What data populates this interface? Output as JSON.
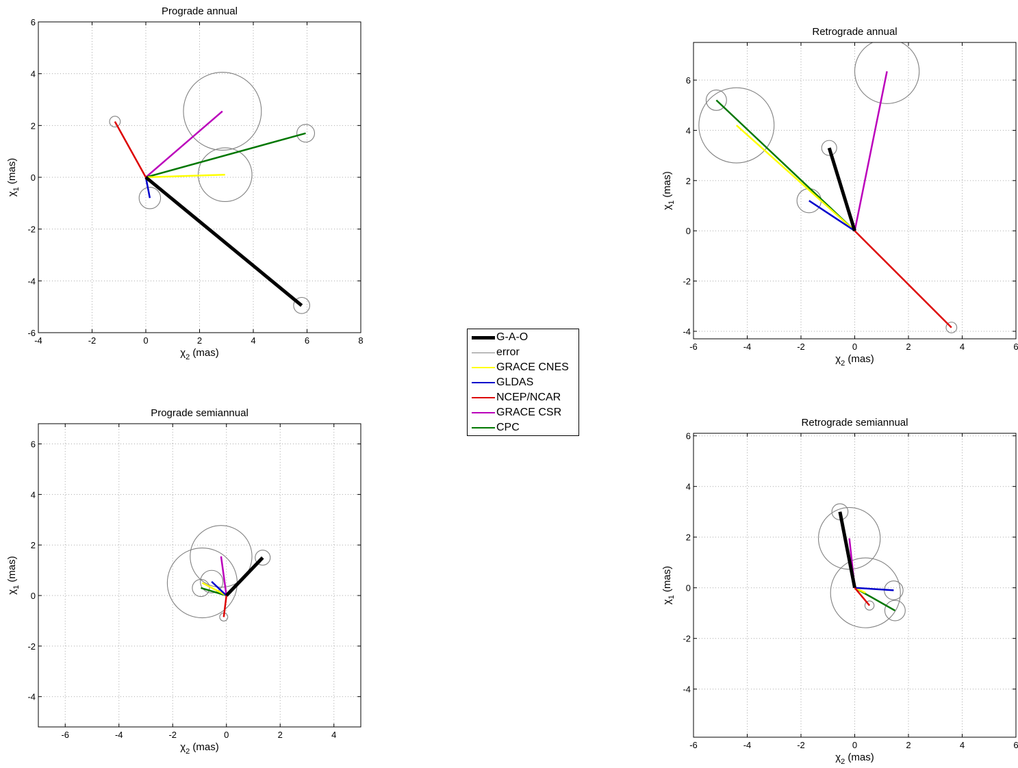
{
  "legend": [
    {
      "name": "G-A-O",
      "color": "#000000",
      "width": 5
    },
    {
      "name": "error",
      "color": "#808080",
      "width": 1
    },
    {
      "name": "GRACE CNES",
      "color": "#ffff00",
      "width": 2.5
    },
    {
      "name": "GLDAS",
      "color": "#0000cc",
      "width": 2.5
    },
    {
      "name": "NCEP/NCAR",
      "color": "#dd0000",
      "width": 2.5
    },
    {
      "name": "GRACE CSR",
      "color": "#bb00bb",
      "width": 2.5
    },
    {
      "name": "CPC",
      "color": "#007700",
      "width": 2.5
    }
  ],
  "chart_data": [
    {
      "type": "scatter",
      "title": "Prograde annual",
      "xlabel": "χ2 (mas)",
      "ylabel": "χ1 (mas)",
      "xlim": [
        -4,
        8
      ],
      "ylim": [
        -6,
        6
      ],
      "xticks": [
        -4,
        -2,
        0,
        2,
        4,
        6,
        8
      ],
      "yticks": [
        -6,
        -4,
        -2,
        0,
        2,
        4,
        6
      ],
      "grid": true,
      "series": [
        {
          "name": "G-A-O",
          "x": 5.8,
          "y": -4.95,
          "error": 0.3
        },
        {
          "name": "GRACE CNES",
          "x": 2.95,
          "y": 0.1,
          "error": 1.0
        },
        {
          "name": "GLDAS",
          "x": 0.15,
          "y": -0.8,
          "error": 0.4
        },
        {
          "name": "NCEP/NCAR",
          "x": -1.15,
          "y": 2.15,
          "error": 0.2
        },
        {
          "name": "GRACE CSR",
          "x": 2.85,
          "y": 2.55,
          "error": 1.45
        },
        {
          "name": "CPC",
          "x": 5.95,
          "y": 1.7,
          "error": 0.33
        }
      ]
    },
    {
      "type": "scatter",
      "title": "Retrograde annual",
      "xlabel": "χ2 (mas)",
      "ylabel": "χ1 (mas)",
      "xlim": [
        -6,
        6
      ],
      "ylim": [
        -4.3,
        7.5
      ],
      "xticks": [
        -6,
        -4,
        -2,
        0,
        2,
        4,
        6
      ],
      "yticks": [
        -4,
        -2,
        0,
        2,
        4,
        6
      ],
      "grid": true,
      "series": [
        {
          "name": "G-A-O",
          "x": -0.95,
          "y": 3.3,
          "error": 0.28
        },
        {
          "name": "GRACE CNES",
          "x": -4.4,
          "y": 4.2,
          "error": 1.4
        },
        {
          "name": "GLDAS",
          "x": -1.7,
          "y": 1.2,
          "error": 0.45
        },
        {
          "name": "NCEP/NCAR",
          "x": 3.6,
          "y": -3.85,
          "error": 0.2
        },
        {
          "name": "GRACE CSR",
          "x": 1.2,
          "y": 6.35,
          "error": 1.2
        },
        {
          "name": "CPC",
          "x": -5.15,
          "y": 5.2,
          "error": 0.38
        }
      ]
    },
    {
      "type": "scatter",
      "title": "Prograde semiannual",
      "xlabel": "χ2 (mas)",
      "ylabel": "χ1 (mas)",
      "xlim": [
        -7,
        5
      ],
      "ylim": [
        -5.2,
        6.8
      ],
      "xticks": [
        -6,
        -4,
        -2,
        0,
        2,
        4
      ],
      "yticks": [
        -4,
        -2,
        0,
        2,
        4,
        6
      ],
      "grid": true,
      "series": [
        {
          "name": "G-A-O",
          "x": 1.35,
          "y": 1.5,
          "error": 0.28
        },
        {
          "name": "GRACE CNES",
          "x": -0.9,
          "y": 0.5,
          "error": 1.3
        },
        {
          "name": "GLDAS",
          "x": -0.55,
          "y": 0.55,
          "error": 0.42
        },
        {
          "name": "NCEP/NCAR",
          "x": -0.1,
          "y": -0.85,
          "error": 0.15
        },
        {
          "name": "GRACE CSR",
          "x": -0.2,
          "y": 1.55,
          "error": 1.15
        },
        {
          "name": "CPC",
          "x": -0.95,
          "y": 0.3,
          "error": 0.32
        }
      ]
    },
    {
      "type": "scatter",
      "title": "Retrograde semiannual",
      "xlabel": "χ2 (mas)",
      "ylabel": "χ1 (mas)",
      "xlim": [
        -6,
        6
      ],
      "ylim": [
        -5.9,
        6.1
      ],
      "xticks": [
        -6,
        -4,
        -2,
        0,
        2,
        4,
        6
      ],
      "yticks": [
        -4,
        -2,
        0,
        2,
        4,
        6
      ],
      "grid": true,
      "series": [
        {
          "name": "G-A-O",
          "x": -0.55,
          "y": 3.0,
          "error": 0.3
        },
        {
          "name": "GRACE CNES",
          "x": 0.4,
          "y": -0.2,
          "error": 1.3
        },
        {
          "name": "GLDAS",
          "x": 1.45,
          "y": -0.1,
          "error": 0.35
        },
        {
          "name": "NCEP/NCAR",
          "x": 0.55,
          "y": -0.7,
          "error": 0.17
        },
        {
          "name": "GRACE CSR",
          "x": -0.2,
          "y": 1.95,
          "error": 1.15
        },
        {
          "name": "CPC",
          "x": 1.5,
          "y": -0.9,
          "error": 0.38
        }
      ]
    }
  ]
}
